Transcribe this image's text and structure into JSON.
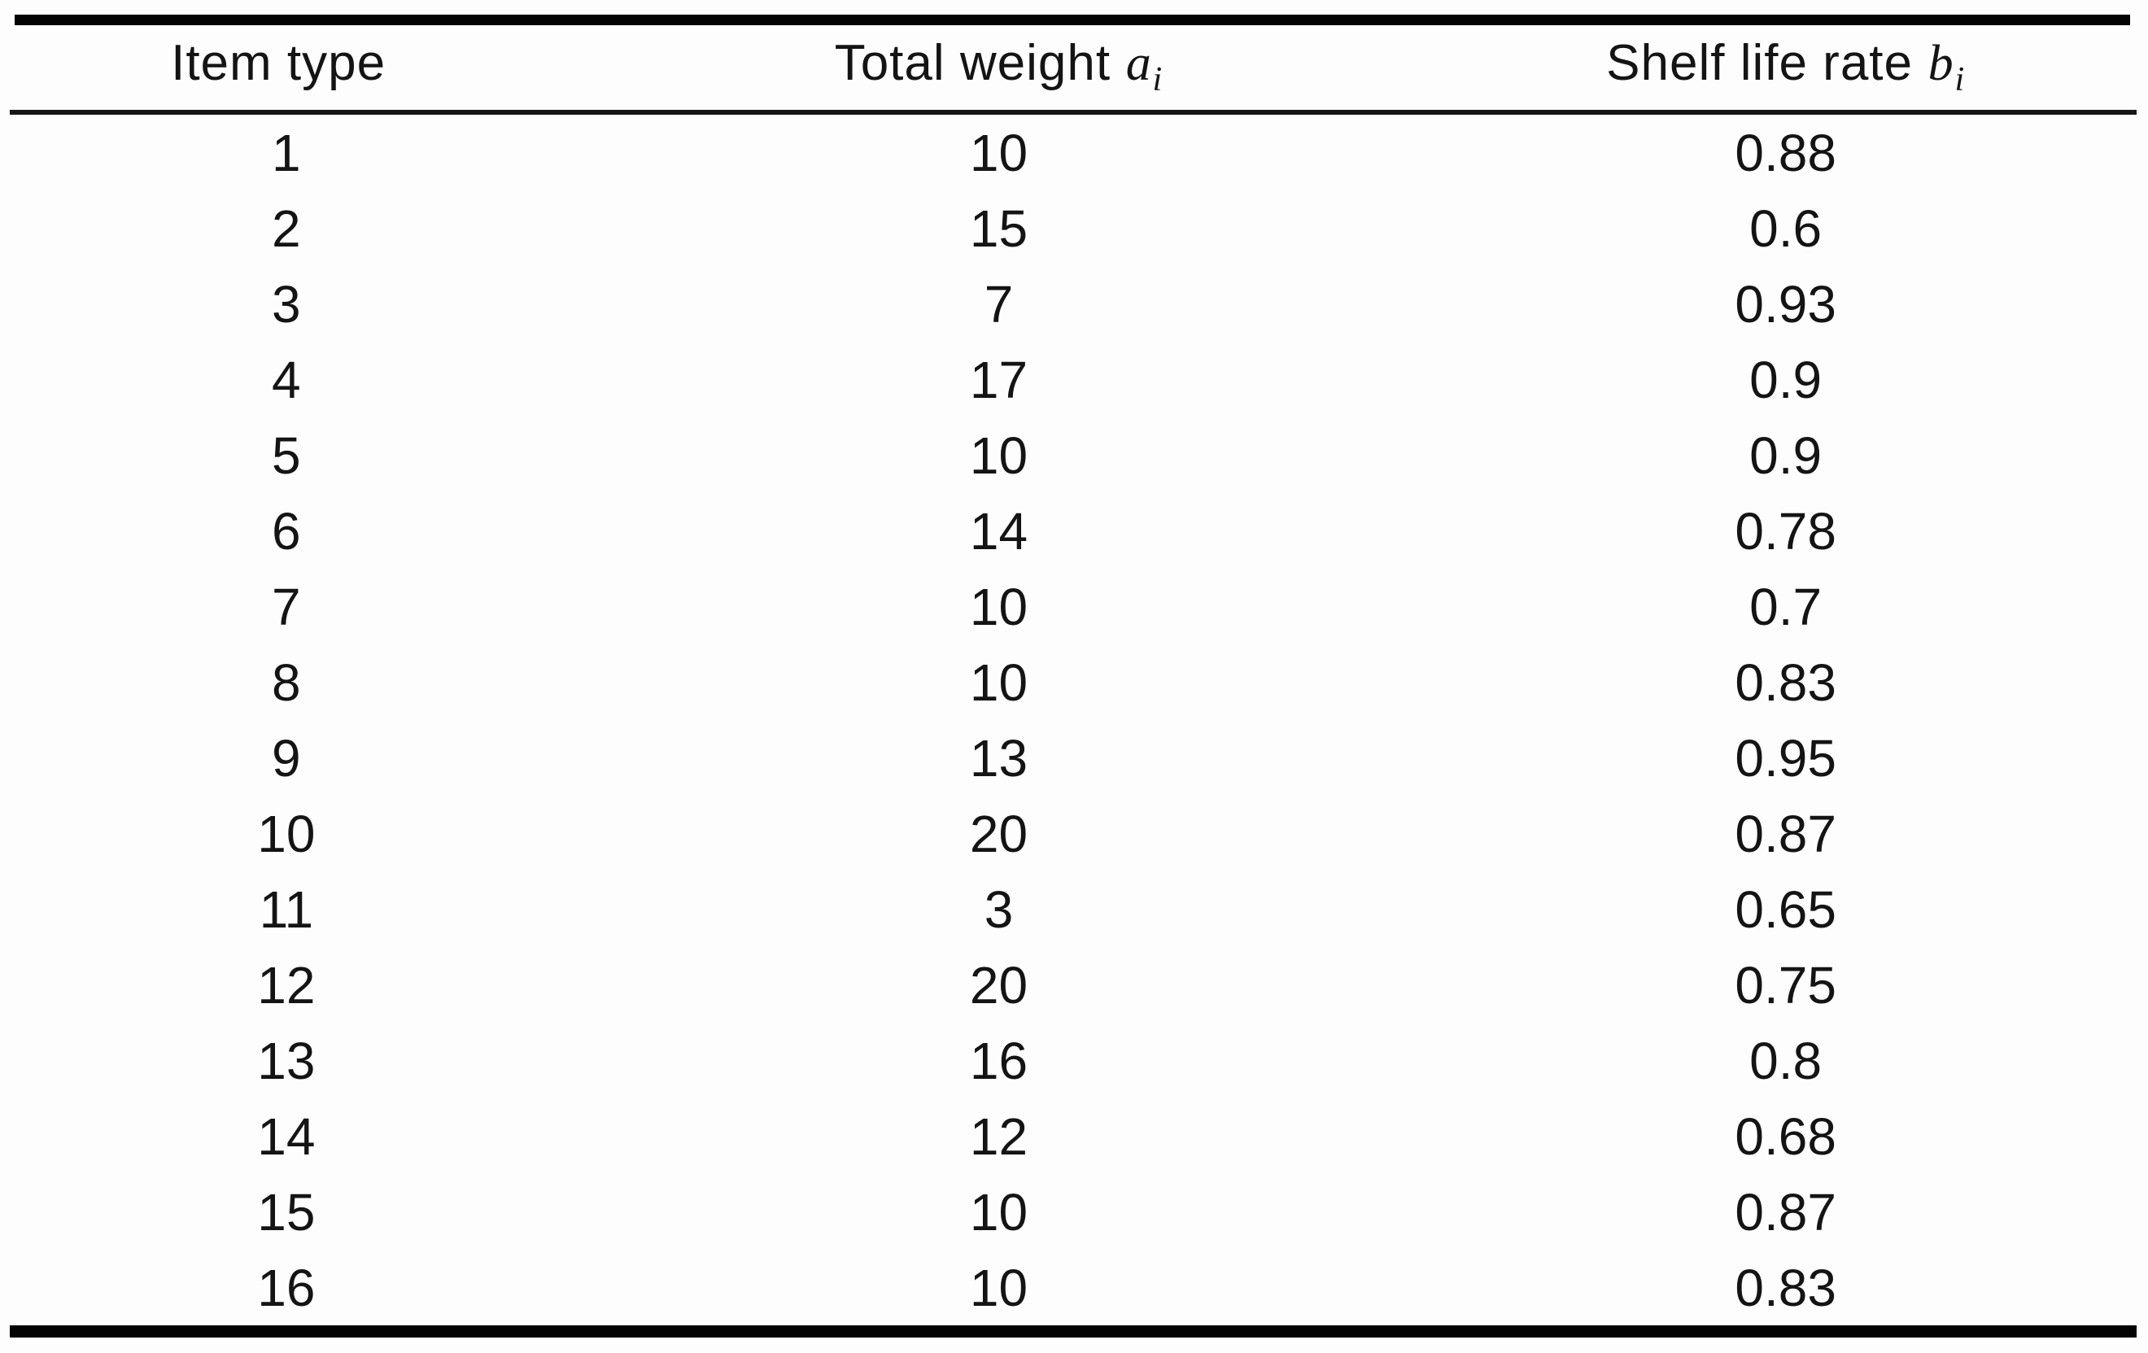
{
  "chart_data": {
    "type": "table",
    "title": "",
    "columns": [
      "Item type",
      "Total weight a_i",
      "Shelf life rate b_i"
    ],
    "rows": [
      [
        1,
        10,
        0.88
      ],
      [
        2,
        15,
        0.6
      ],
      [
        3,
        7,
        0.93
      ],
      [
        4,
        17,
        0.9
      ],
      [
        5,
        10,
        0.9
      ],
      [
        6,
        14,
        0.78
      ],
      [
        7,
        10,
        0.7
      ],
      [
        8,
        10,
        0.83
      ],
      [
        9,
        13,
        0.95
      ],
      [
        10,
        20,
        0.87
      ],
      [
        11,
        3,
        0.65
      ],
      [
        12,
        20,
        0.75
      ],
      [
        13,
        16,
        0.8
      ],
      [
        14,
        12,
        0.68
      ],
      [
        15,
        10,
        0.87
      ],
      [
        16,
        10,
        0.83
      ]
    ]
  },
  "table": {
    "header": [
      {
        "label": "Item type",
        "variable": "",
        "subscript": ""
      },
      {
        "label": "Total weight",
        "variable": "a",
        "subscript": "i"
      },
      {
        "label": "Shelf life rate",
        "variable": "b",
        "subscript": "i"
      }
    ],
    "rows": [
      [
        "1",
        "10",
        "0.88"
      ],
      [
        "2",
        "15",
        "0.6"
      ],
      [
        "3",
        "7",
        "0.93"
      ],
      [
        "4",
        "17",
        "0.9"
      ],
      [
        "5",
        "10",
        "0.9"
      ],
      [
        "6",
        "14",
        "0.78"
      ],
      [
        "7",
        "10",
        "0.7"
      ],
      [
        "8",
        "10",
        "0.83"
      ],
      [
        "9",
        "13",
        "0.95"
      ],
      [
        "10",
        "20",
        "0.87"
      ],
      [
        "11",
        "3",
        "0.65"
      ],
      [
        "12",
        "20",
        "0.75"
      ],
      [
        "13",
        "16",
        "0.8"
      ],
      [
        "14",
        "12",
        "0.68"
      ],
      [
        "15",
        "10",
        "0.87"
      ],
      [
        "16",
        "10",
        "0.83"
      ]
    ],
    "colors": {
      "rule": "#040404",
      "text": "#141414",
      "background": "#fdfdfd"
    }
  }
}
